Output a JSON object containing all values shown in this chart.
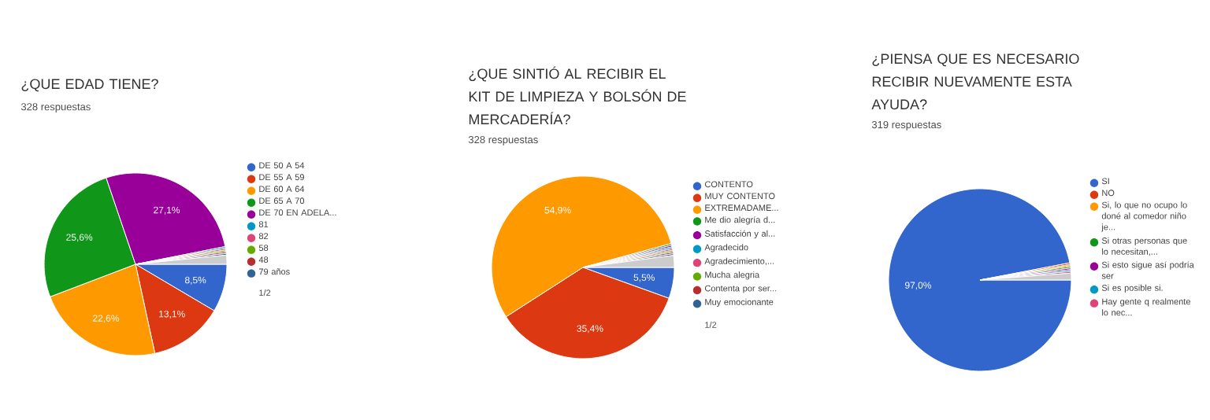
{
  "chart_data": [
    {
      "type": "pie",
      "title": "¿QUE EDAD TIENE?",
      "subtitle": "328 respuestas",
      "legend": "right",
      "annotations": [
        "1/2"
      ],
      "categories": [
        "DE 50 A 54",
        "DE 55 A 59",
        "DE 60 A 64",
        "DE 65 A 70",
        "DE 70 EN ADELA...",
        "81",
        "82",
        "58",
        "48",
        "79 años",
        null
      ],
      "values": [
        8.5,
        13.1,
        22.6,
        25.6,
        27.1,
        0.3,
        0.3,
        0.3,
        0.3,
        0.3,
        1.6
      ],
      "value_labels": [
        "8,5%",
        "13,1%",
        "22,6%",
        "25,6%",
        "27,1%",
        null,
        null,
        null,
        null,
        null,
        null
      ],
      "colors": [
        "#3366cc",
        "#dc3912",
        "#ff9900",
        "#109618",
        "#990099",
        "#0099c6",
        "#dd4477",
        "#66aa00",
        "#b82e2e",
        "#316395",
        "#cccccc"
      ]
    },
    {
      "type": "pie",
      "title": "¿QUE SINTIÓ AL RECIBIR EL KIT DE LIMPIEZA Y BOLSÓN DE MERCADERÍA?",
      "subtitle": "328 respuestas",
      "legend": "right",
      "annotations": [
        "1/2"
      ],
      "categories": [
        "CONTENTO",
        "MUY CONTENTO",
        "EXTREMADAME...",
        "Me dio alegría d...",
        "Satisfacción y al...",
        "Agradecido",
        "Agradecimiento,...",
        "Mucha alegria",
        "Contenta por ser...",
        "Muy emocionante",
        null
      ],
      "values": [
        5.5,
        35.4,
        54.9,
        0.3,
        0.3,
        0.3,
        0.3,
        0.3,
        0.3,
        0.3,
        2.1
      ],
      "value_labels": [
        "5,5%",
        "35,4%",
        "54,9%",
        null,
        null,
        null,
        null,
        null,
        null,
        null,
        null
      ],
      "colors": [
        "#3366cc",
        "#dc3912",
        "#ff9900",
        "#109618",
        "#990099",
        "#0099c6",
        "#dd4477",
        "#66aa00",
        "#b82e2e",
        "#316395",
        "#cccccc"
      ]
    },
    {
      "type": "pie",
      "title": "¿PIENSA QUE ES NECESARIO RECIBIR NUEVAMENTE ESTA AYUDA?",
      "subtitle": "319 respuestas",
      "legend": "right",
      "categories": [
        "SI",
        "NO",
        "Si, lo que no ocupo lo doné al comedor niño je...",
        "Si otras personas que lo necesitan,...",
        "Si esto sigue así podría ser",
        "Si es posible si.",
        "Hay gente q realmente lo nec...",
        null
      ],
      "values": [
        97.0,
        0.3,
        0.3,
        0.3,
        0.3,
        0.3,
        0.3,
        1.2
      ],
      "value_labels": [
        "97,0%",
        null,
        null,
        null,
        null,
        null,
        null,
        null
      ],
      "colors": [
        "#3366cc",
        "#dc3912",
        "#ff9900",
        "#109618",
        "#990099",
        "#0099c6",
        "#dd4477",
        "#cccccc"
      ]
    }
  ]
}
